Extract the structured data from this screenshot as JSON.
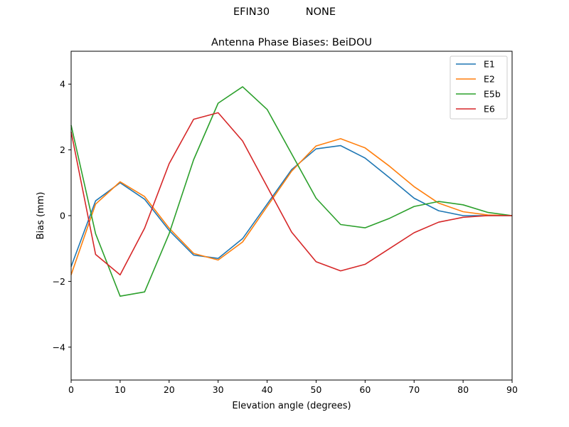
{
  "header": {
    "station": "EFIN30",
    "radome": "NONE"
  },
  "colors": {
    "E1": "#1f77b4",
    "E2": "#ff7f0e",
    "E5b": "#2ca02c",
    "E6": "#d62728"
  },
  "chart_data": {
    "type": "line",
    "title": "Antenna Phase Biases: BeiDOU",
    "xlabel": "Elevation angle (degrees)",
    "ylabel": "Bias (mm)",
    "xlim": [
      0,
      90
    ],
    "ylim": [
      -5,
      5
    ],
    "xticks": [
      0,
      10,
      20,
      30,
      40,
      50,
      60,
      70,
      80,
      90
    ],
    "yticks": [
      -4,
      -2,
      0,
      2,
      4
    ],
    "ytick_labels": [
      "−4",
      "−2",
      "0",
      "2",
      "4"
    ],
    "grid": false,
    "legend_position": "top-right",
    "x": [
      0,
      5,
      10,
      15,
      20,
      25,
      30,
      35,
      40,
      45,
      50,
      55,
      60,
      65,
      70,
      75,
      80,
      85,
      90
    ],
    "series": [
      {
        "name": "E1",
        "values": [
          -1.55,
          0.45,
          1.0,
          0.5,
          -0.45,
          -1.2,
          -1.3,
          -0.7,
          0.35,
          1.4,
          2.03,
          2.13,
          1.75,
          1.15,
          0.53,
          0.15,
          0.0,
          0.0,
          0.0
        ]
      },
      {
        "name": "E2",
        "values": [
          -1.8,
          0.35,
          1.03,
          0.58,
          -0.38,
          -1.15,
          -1.35,
          -0.8,
          0.28,
          1.35,
          2.12,
          2.34,
          2.06,
          1.5,
          0.88,
          0.38,
          0.12,
          0.02,
          0.0
        ]
      },
      {
        "name": "E5b",
        "values": [
          2.75,
          -0.55,
          -2.45,
          -2.32,
          -0.55,
          1.7,
          3.42,
          3.92,
          3.23,
          1.88,
          0.53,
          -0.27,
          -0.37,
          -0.08,
          0.28,
          0.43,
          0.33,
          0.1,
          0.0
        ]
      },
      {
        "name": "E6",
        "values": [
          2.55,
          -1.18,
          -1.8,
          -0.38,
          1.58,
          2.93,
          3.13,
          2.27,
          0.88,
          -0.5,
          -1.4,
          -1.68,
          -1.48,
          -1.0,
          -0.52,
          -0.2,
          -0.05,
          0.0,
          0.0
        ]
      }
    ]
  }
}
